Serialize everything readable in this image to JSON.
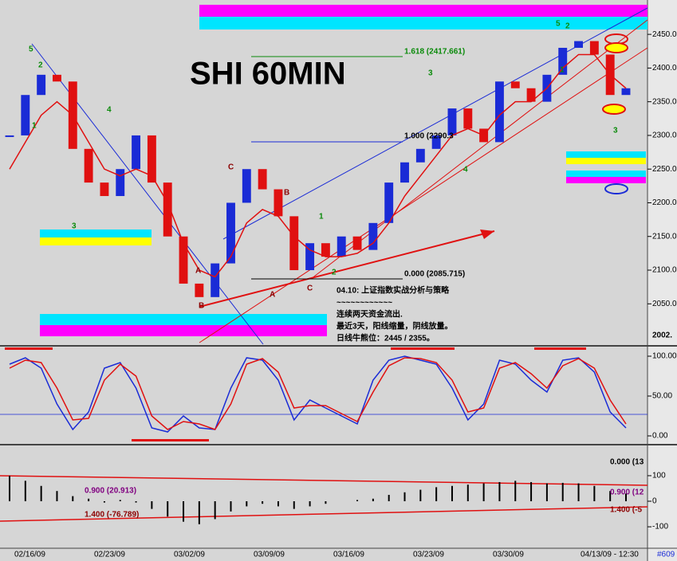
{
  "chart_data": {
    "type": "candle",
    "title": "SHI 60MIN",
    "x_labels": [
      "02/16/09",
      "02/23/09",
      "03/02/09",
      "03/09/09",
      "03/16/09",
      "03/23/09",
      "03/30/09",
      "04/13/09 - 12:30"
    ],
    "price": {
      "ylim": [
        1990,
        2501
      ],
      "yticks": [
        {
          "value": 2050,
          "label": "2050.00"
        },
        {
          "value": 2100,
          "label": "2100.00"
        },
        {
          "value": 2150,
          "label": "2150.00"
        },
        {
          "value": 2200,
          "label": "2200.00"
        },
        {
          "value": 2250,
          "label": "2250.00"
        },
        {
          "value": 2300,
          "label": "2300.00"
        },
        {
          "value": 2350,
          "label": "2350.00"
        },
        {
          "value": 2400,
          "label": "2400.00"
        },
        {
          "value": 2450,
          "label": "2450.00"
        }
      ],
      "up_color": "#1a2bd6",
      "down_color": "#e01010",
      "values": [
        2300,
        2360,
        2390,
        2380,
        2280,
        2230,
        2210,
        2250,
        2300,
        2230,
        2150,
        2080,
        2060,
        2110,
        2200,
        2250,
        2220,
        2180,
        2100,
        2140,
        2120,
        2150,
        2130,
        2170,
        2230,
        2260,
        2280,
        2300,
        2340,
        2310,
        2290,
        2380,
        2370,
        2350,
        2390,
        2430,
        2440,
        2420,
        2360,
        2370
      ],
      "ma": {
        "color": "#e01010",
        "values": [
          2250,
          2290,
          2330,
          2350,
          2330,
          2290,
          2250,
          2240,
          2250,
          2240,
          2200,
          2140,
          2100,
          2090,
          2120,
          2170,
          2190,
          2180,
          2150,
          2130,
          2120,
          2120,
          2125,
          2140,
          2170,
          2210,
          2240,
          2270,
          2300,
          2310,
          2300,
          2330,
          2350,
          2350,
          2370,
          2400,
          2420,
          2420,
          2390,
          2370
        ]
      }
    },
    "annotations": [
      "1.618 (2417.661)",
      "1.000 (2290.3",
      "0.000 (2085.715)",
      "2002."
    ],
    "wave_labels": [
      "5",
      "2",
      "1",
      "4",
      "3",
      "C",
      "B",
      "A",
      "B",
      "A",
      "C",
      "1",
      "2",
      "3",
      "4",
      "5",
      "2",
      "1",
      "3"
    ],
    "note": [
      "04.10: 上证指数实战分析与策略",
      "~~~~~~~~~~~~",
      "连续两天资金流出.",
      "最近3天，阳线缩量，阴线放量。",
      "日线牛熊位：2445 / 2355。"
    ],
    "stoch": {
      "ylim": [
        -8,
        110
      ],
      "yticks": [
        {
          "value": 0,
          "label": "0.00"
        },
        {
          "value": 50,
          "label": "50.00"
        },
        {
          "value": 100,
          "label": "100.00"
        }
      ],
      "series": [
        {
          "color": "#1a2bd6",
          "values": [
            90,
            98,
            85,
            40,
            8,
            30,
            85,
            92,
            60,
            10,
            5,
            25,
            10,
            8,
            60,
            98,
            95,
            70,
            20,
            45,
            35,
            25,
            15,
            70,
            95,
            100,
            95,
            90,
            60,
            20,
            40,
            95,
            90,
            70,
            55,
            95,
            98,
            80,
            30,
            10
          ]
        },
        {
          "color": "#e01010",
          "values": [
            85,
            95,
            92,
            60,
            20,
            22,
            70,
            90,
            75,
            25,
            8,
            18,
            15,
            8,
            40,
            90,
            97,
            80,
            35,
            38,
            38,
            28,
            18,
            55,
            88,
            98,
            97,
            92,
            70,
            30,
            35,
            85,
            92,
            78,
            60,
            88,
            97,
            85,
            45,
            15
          ]
        }
      ]
    },
    "macd": {
      "ylim": [
        -184,
        209
      ],
      "yticks": [
        -100,
        0,
        100
      ],
      "color": "#000000",
      "values": [
        100,
        80,
        60,
        40,
        20,
        10,
        -5,
        5,
        -5,
        -30,
        -60,
        -80,
        -90,
        -70,
        -40,
        -20,
        -10,
        -20,
        -30,
        -20,
        -10,
        0,
        5,
        10,
        25,
        35,
        45,
        55,
        60,
        65,
        70,
        75,
        80,
        75,
        70,
        72,
        70,
        60,
        40,
        30
      ],
      "labels": [
        "0.900 (20.913)",
        "1.400 (-76.789)",
        "0.000 (13",
        "0.900 (12",
        "1.400 (-5"
      ]
    },
    "footer": "#609"
  }
}
